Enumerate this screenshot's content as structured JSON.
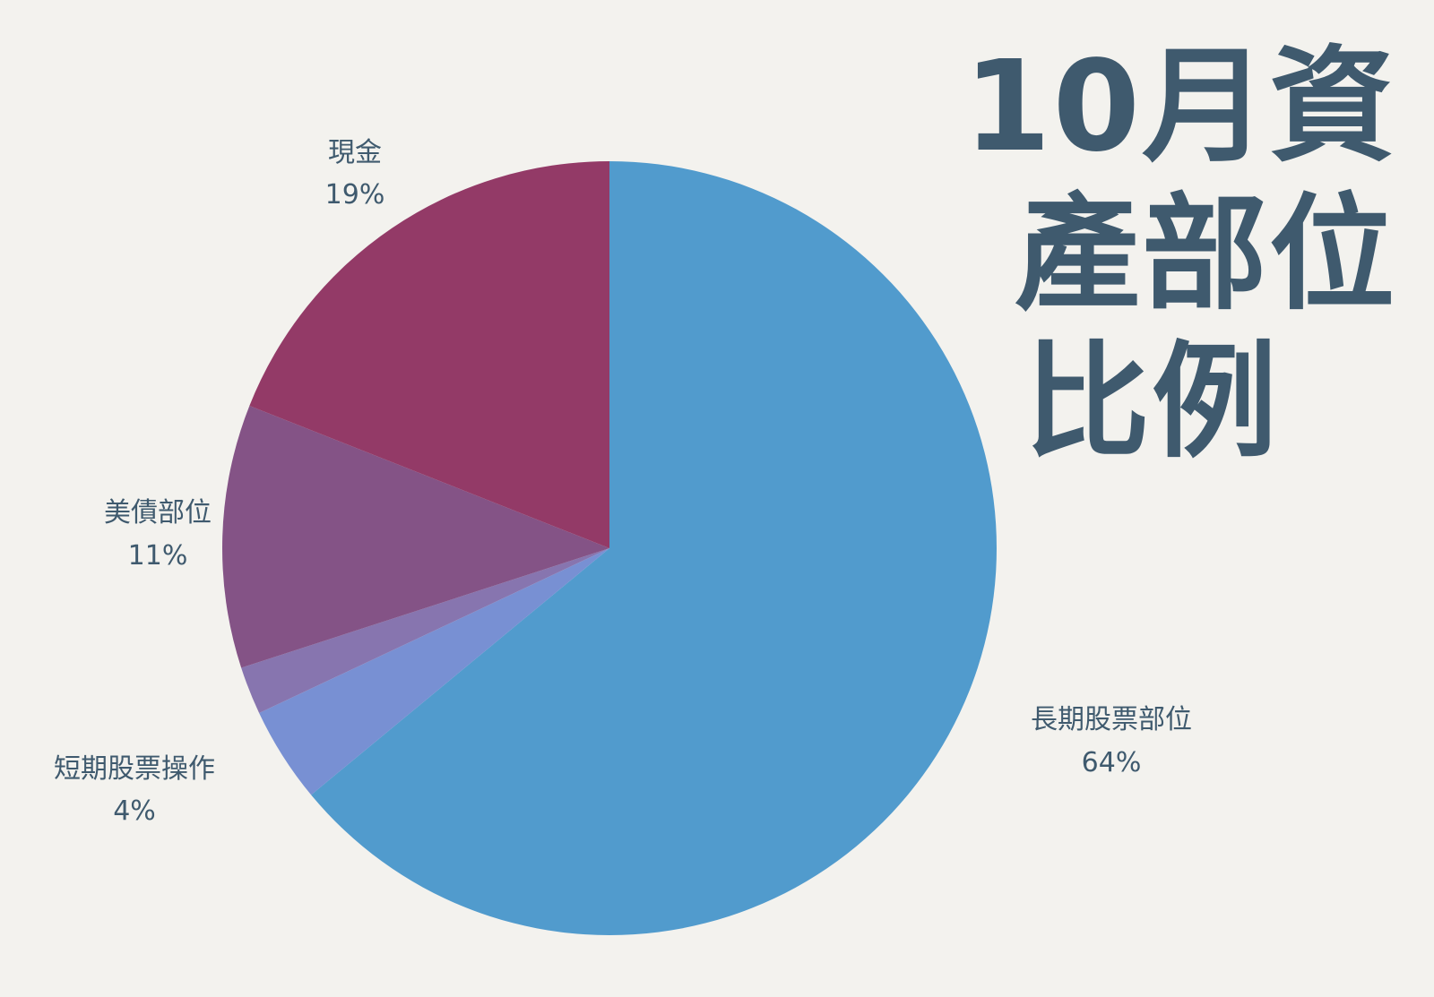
{
  "title_lines": [
    "10月資",
    "產部位",
    "比例"
  ],
  "chart_data": {
    "type": "pie",
    "title": "10月資產部位比例",
    "start_angle_deg": 0,
    "direction": "clockwise",
    "slices": [
      {
        "label": "長期股票部位",
        "value": 64,
        "value_label": "64%",
        "color": "#519bcd",
        "labeled": true
      },
      {
        "label": "短期股票操作",
        "value": 4,
        "value_label": "4%",
        "color": "#7890d3",
        "labeled": true
      },
      {
        "label": "",
        "value": 2,
        "value_label": "",
        "color": "#8775af",
        "labeled": false
      },
      {
        "label": "美債部位",
        "value": 11,
        "value_label": "11%",
        "color": "#845386",
        "labeled": true
      },
      {
        "label": "現金",
        "value": 19,
        "value_label": "19%",
        "color": "#933a67",
        "labeled": true
      }
    ]
  }
}
